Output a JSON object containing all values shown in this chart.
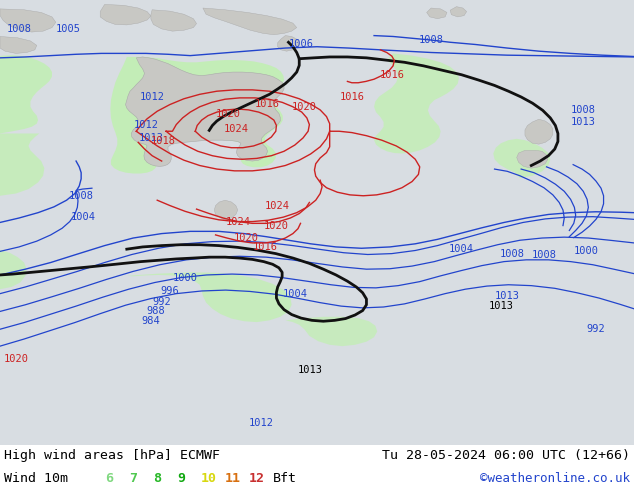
{
  "title_left": "High wind areas [hPa] ECMWF",
  "title_right": "Tu 28-05-2024 06:00 UTC (12+66)",
  "subtitle_left": "Wind 10m",
  "subtitle_right": "©weatheronline.co.uk",
  "bg_color": "#d8dde2",
  "land_color": "#c8c8c4",
  "sea_color": "#d8dde2",
  "wind6_color": "#c0f0b0",
  "wind7_color": "#90e080",
  "wind8_color": "#60d050",
  "wind9_color": "#30c020",
  "wind10_color": "#f0f020",
  "wind11_color": "#f0a020",
  "wind12_color": "#e03030",
  "contour_blue": "#2244cc",
  "contour_red": "#cc2222",
  "contour_black": "#111111",
  "text_black": "#000000",
  "text_blue": "#2244cc",
  "text_red": "#cc2222",
  "text_green": "#226622",
  "text_link": "#2244cc",
  "bottom_bg": "#ffffff",
  "bft_colors": [
    "#80d880",
    "#50c850",
    "#28b828",
    "#10a810",
    "#d8d810",
    "#d87010",
    "#c83030"
  ],
  "bft_labels": [
    "6",
    "7",
    "8",
    "9",
    "10",
    "11",
    "12"
  ],
  "figw": 6.34,
  "figh": 4.9,
  "dpi": 100
}
